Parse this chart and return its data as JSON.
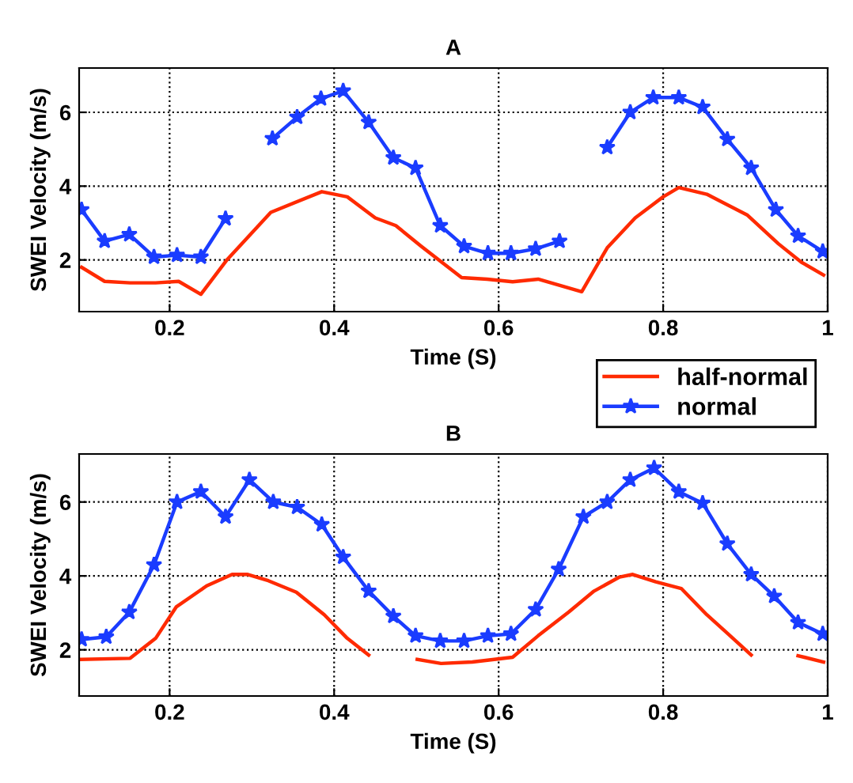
{
  "chart_data": [
    {
      "type": "line",
      "title": "A",
      "xlabel": "Time (S)",
      "ylabel": "SWEI Velocity (m/s)",
      "xlim": [
        0.09,
        1
      ],
      "ylim": [
        0.6,
        7.2
      ],
      "xticks": [
        0.2,
        0.4,
        0.6,
        0.8,
        {
          "value": 1,
          "label": "1"
        }
      ],
      "yticks": [
        2,
        4,
        6
      ],
      "grid": true,
      "legend": "bottom right",
      "series": [
        {
          "name": "half-normal",
          "color": "#ff2a00",
          "marker": "none",
          "x": [
            0.093,
            0.121,
            0.152,
            0.183,
            0.211,
            0.238,
            0.27,
            0.323,
            0.385,
            0.416,
            0.45,
            0.475,
            0.506,
            0.555,
            0.586,
            0.617,
            0.648,
            0.701,
            0.732,
            0.766,
            0.8,
            0.819,
            0.853,
            0.902,
            0.94,
            0.968,
            0.995
          ],
          "values": [
            1.8,
            1.42,
            1.38,
            1.38,
            1.42,
            1.07,
            2.01,
            3.29,
            3.85,
            3.71,
            3.14,
            2.93,
            2.37,
            1.52,
            1.48,
            1.41,
            1.48,
            1.14,
            2.33,
            3.14,
            3.71,
            3.96,
            3.78,
            3.22,
            2.44,
            1.94,
            1.59
          ]
        },
        {
          "name": "normal",
          "color": "#1a3cff",
          "marker": "star",
          "x": [
            0.093,
            0.121,
            0.151,
            0.181,
            0.209,
            0.238,
            0.268,
            0.296,
            0.325,
            0.355,
            0.384,
            0.411,
            0.442,
            0.472,
            0.499,
            0.529,
            0.558,
            0.587,
            0.615,
            0.645,
            0.674,
            0.703,
            0.732,
            0.76,
            0.788,
            0.819,
            0.848,
            0.878,
            0.907,
            0.937,
            0.964,
            0.994
          ],
          "values": [
            3.36,
            2.51,
            2.69,
            2.08,
            2.13,
            2.08,
            3.12,
            null,
            5.29,
            5.87,
            6.37,
            6.58,
            5.73,
            4.77,
            4.49,
            2.93,
            2.37,
            2.18,
            2.18,
            2.3,
            2.51,
            null,
            5.05,
            6.0,
            6.4,
            6.4,
            6.14,
            5.27,
            4.49,
            3.36,
            2.65,
            2.23
          ]
        }
      ]
    },
    {
      "type": "line",
      "title": "B",
      "xlabel": "Time (S)",
      "ylabel": "SWEI Velocity (m/s)",
      "xlim": [
        0.09,
        1
      ],
      "ylim": [
        0.75,
        7.3
      ],
      "xticks": [
        0.2,
        0.4,
        0.6,
        0.8,
        {
          "value": 1,
          "label": "1"
        }
      ],
      "yticks": [
        2,
        4,
        6
      ],
      "grid": true,
      "series": [
        {
          "color": "#ff2a00",
          "marker": "none",
          "x": [
            0.093,
            0.152,
            0.183,
            0.208,
            0.245,
            0.276,
            0.295,
            0.32,
            0.354,
            0.388,
            0.416,
            0.442,
            0.47,
            0.501,
            0.53,
            0.568,
            0.617,
            0.648,
            0.685,
            0.716,
            0.747,
            0.763,
            0.791,
            0.822,
            0.853,
            0.878,
            0.907,
            0.935,
            0.964,
            0.995
          ],
          "values": [
            1.74,
            1.77,
            2.31,
            3.16,
            3.73,
            4.04,
            4.04,
            3.87,
            3.56,
            2.95,
            2.31,
            1.86,
            null,
            1.74,
            1.63,
            1.67,
            1.8,
            2.38,
            3.02,
            3.59,
            3.97,
            4.04,
            3.84,
            3.66,
            2.95,
            2.45,
            1.86,
            null,
            1.84,
            1.67
          ]
        },
        {
          "color": "#1a3cff",
          "marker": "star",
          "x": [
            0.093,
            0.123,
            0.151,
            0.181,
            0.209,
            0.238,
            0.268,
            0.297,
            0.326,
            0.355,
            0.385,
            0.411,
            0.442,
            0.472,
            0.499,
            0.529,
            0.558,
            0.587,
            0.615,
            0.645,
            0.673,
            0.703,
            0.732,
            0.76,
            0.789,
            0.819,
            0.848,
            0.878,
            0.907,
            0.935,
            0.964,
            0.994
          ],
          "values": [
            2.28,
            2.35,
            3.02,
            4.3,
            6.0,
            6.28,
            5.6,
            6.6,
            6.0,
            5.86,
            5.39,
            4.51,
            3.59,
            2.91,
            2.38,
            2.24,
            2.24,
            2.38,
            2.43,
            3.09,
            4.18,
            5.6,
            6.0,
            6.6,
            6.92,
            6.28,
            5.97,
            4.87,
            4.04,
            3.45,
            2.74,
            2.43
          ]
        }
      ]
    }
  ]
}
